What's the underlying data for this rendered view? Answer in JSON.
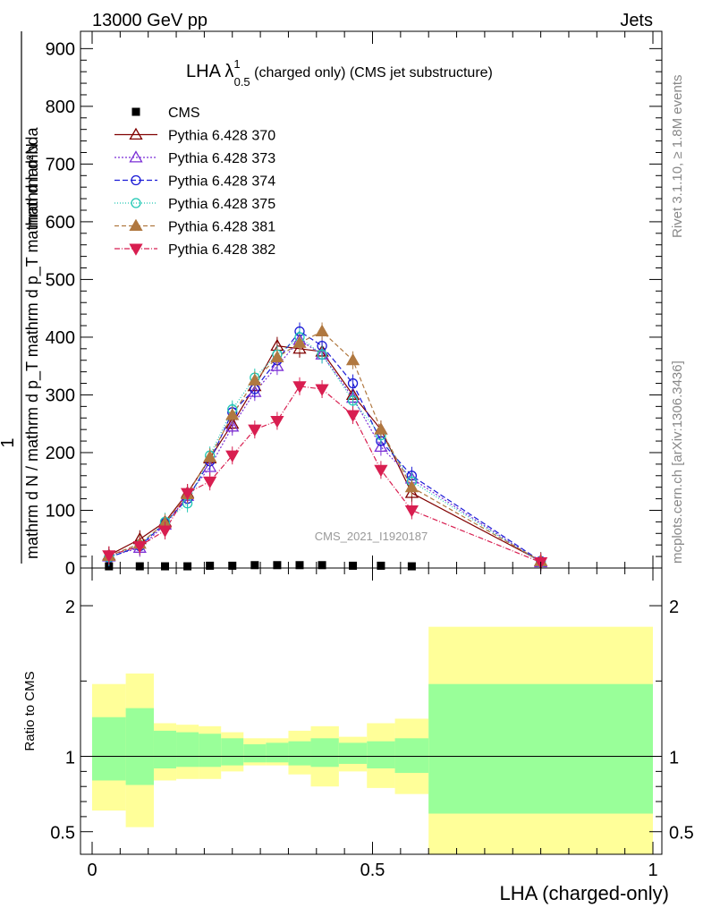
{
  "header": {
    "left": "13000 GeV pp",
    "right": "Jets"
  },
  "side": {
    "rivet": "Rivet 3.1.10, ≥ 1.8M events",
    "mcplots": "mcplots.cern.ch [arXiv:1306.3436]"
  },
  "watermark": "CMS_2021_I1920187",
  "chart_data": [
    {
      "type": "line",
      "title_main": "LHA λ",
      "title_sup": "1",
      "title_sub": "0.5",
      "title_rest": " (charged only) (CMS jet substructure)",
      "ylabel_num": "1",
      "ylabel_den": "mathrm d N / mathrm d p_T mathrm d p_T mathrm d lambda",
      "ylabel_top": "mathrm d²N",
      "ylim": [
        0,
        930
      ],
      "xlim": [
        -0.02,
        1.0
      ],
      "yticks": [
        "0",
        "100",
        "200",
        "300",
        "400",
        "500",
        "600",
        "700",
        "800",
        "900"
      ],
      "ytick_values": [
        0,
        100,
        200,
        300,
        400,
        500,
        600,
        700,
        800,
        900
      ],
      "legend_position": "top-left",
      "x": [
        0.03,
        0.085,
        0.13,
        0.17,
        0.21,
        0.25,
        0.29,
        0.33,
        0.37,
        0.41,
        0.465,
        0.515,
        0.57,
        0.8
      ],
      "series": [
        {
          "name": "CMS",
          "color": "#000000",
          "marker": "square",
          "values": [
            3,
            3,
            3,
            3,
            4,
            4,
            5,
            5,
            5,
            5,
            4,
            4,
            3,
            null
          ]
        },
        {
          "name": "Pythia 6.428 370",
          "color": "#800000",
          "marker": "triangle-open",
          "dash": "",
          "values": [
            22,
            50,
            80,
            130,
            190,
            250,
            315,
            385,
            380,
            375,
            300,
            240,
            130,
            12
          ]
        },
        {
          "name": "Pythia 6.428 373",
          "color": "#7b2fd6",
          "marker": "triangle-open",
          "dash": "2,2",
          "values": [
            20,
            35,
            75,
            125,
            175,
            245,
            305,
            350,
            395,
            370,
            295,
            210,
            155,
            10
          ]
        },
        {
          "name": "Pythia 6.428 374",
          "color": "#1a1ad6",
          "marker": "circle-open",
          "dash": "6,3",
          "values": [
            18,
            38,
            78,
            120,
            185,
            270,
            310,
            360,
            410,
            385,
            320,
            220,
            160,
            12
          ]
        },
        {
          "name": "Pythia 6.428 375",
          "color": "#20c8b4",
          "marker": "circle-open",
          "dash": "1,2",
          "values": [
            19,
            40,
            80,
            112,
            195,
            275,
            330,
            370,
            400,
            370,
            290,
            230,
            150,
            10
          ]
        },
        {
          "name": "Pythia 6.428 381",
          "color": "#b07840",
          "marker": "triangle-filled",
          "dash": "5,3",
          "values": [
            21,
            42,
            78,
            128,
            192,
            265,
            325,
            365,
            390,
            410,
            360,
            240,
            140,
            12
          ]
        },
        {
          "name": "Pythia 6.428 382",
          "color": "#d81e50",
          "marker": "triangledown-filled",
          "dash": "6,2,1,2",
          "values": [
            22,
            38,
            65,
            130,
            150,
            195,
            240,
            255,
            315,
            310,
            265,
            170,
            100,
            10
          ]
        }
      ]
    },
    {
      "type": "area",
      "ylabel": "Ratio to CMS",
      "xlabel": "LHA (charged-only)",
      "ylim": [
        0.35,
        2.25
      ],
      "yticks": [
        "0.5",
        "1",
        "2"
      ],
      "ytick_values": [
        0.5,
        1,
        2
      ],
      "xticks": [
        "0",
        "0.5",
        "1"
      ],
      "xtick_values": [
        0,
        0.5,
        1
      ],
      "reference": 1,
      "bands": [
        {
          "x0": 0.0,
          "x1": 0.06,
          "inner": [
            0.84,
            1.26
          ],
          "outer": [
            0.64,
            1.48
          ]
        },
        {
          "x0": 0.06,
          "x1": 0.11,
          "inner": [
            0.81,
            1.32
          ],
          "outer": [
            0.53,
            1.55
          ]
        },
        {
          "x0": 0.11,
          "x1": 0.15,
          "inner": [
            0.92,
            1.17
          ],
          "outer": [
            0.84,
            1.22
          ]
        },
        {
          "x0": 0.15,
          "x1": 0.19,
          "inner": [
            0.93,
            1.16
          ],
          "outer": [
            0.85,
            1.21
          ]
        },
        {
          "x0": 0.19,
          "x1": 0.23,
          "inner": [
            0.93,
            1.15
          ],
          "outer": [
            0.85,
            1.2
          ]
        },
        {
          "x0": 0.23,
          "x1": 0.27,
          "inner": [
            0.94,
            1.12
          ],
          "outer": [
            0.9,
            1.16
          ]
        },
        {
          "x0": 0.27,
          "x1": 0.31,
          "inner": [
            0.96,
            1.08
          ],
          "outer": [
            0.94,
            1.12
          ]
        },
        {
          "x0": 0.31,
          "x1": 0.35,
          "inner": [
            0.96,
            1.09
          ],
          "outer": [
            0.94,
            1.12
          ]
        },
        {
          "x0": 0.35,
          "x1": 0.39,
          "inner": [
            0.94,
            1.1
          ],
          "outer": [
            0.88,
            1.17
          ]
        },
        {
          "x0": 0.39,
          "x1": 0.44,
          "inner": [
            0.93,
            1.12
          ],
          "outer": [
            0.8,
            1.2
          ]
        },
        {
          "x0": 0.44,
          "x1": 0.49,
          "inner": [
            0.95,
            1.09
          ],
          "outer": [
            0.9,
            1.13
          ]
        },
        {
          "x0": 0.49,
          "x1": 0.54,
          "inner": [
            0.92,
            1.1
          ],
          "outer": [
            0.79,
            1.22
          ]
        },
        {
          "x0": 0.54,
          "x1": 0.6,
          "inner": [
            0.89,
            1.12
          ],
          "outer": [
            0.75,
            1.25
          ]
        },
        {
          "x0": 0.6,
          "x1": 1.0,
          "inner": [
            0.62,
            1.48
          ],
          "outer": [
            0.35,
            1.86
          ]
        }
      ],
      "inner_color": "#99ff99",
      "outer_color": "#ffff99"
    }
  ]
}
